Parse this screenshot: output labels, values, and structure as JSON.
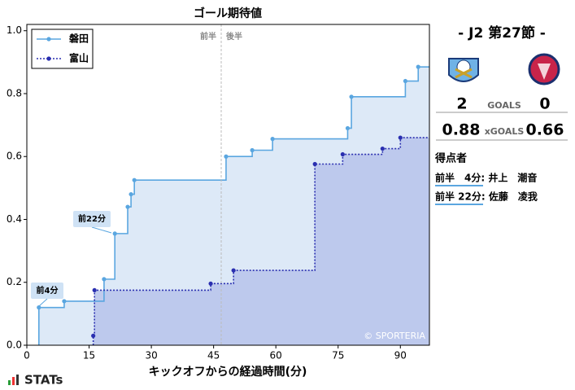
{
  "chart_data": {
    "type": "step",
    "title": "ゴール期待値",
    "xlabel": "キックオフからの経過時間(分)",
    "xlim": [
      0,
      97
    ],
    "ylim": [
      0,
      1.02
    ],
    "xticks": [
      0,
      15,
      30,
      45,
      60,
      75,
      90
    ],
    "yticks": [
      {
        "value": 0,
        "label": "0.0"
      },
      0.2,
      0.4,
      0.6,
      0.8,
      {
        "value": 1,
        "label": "1.0"
      }
    ],
    "half_labels": [
      "前半",
      "後半"
    ],
    "legend_loc": "upper left",
    "watermark": "© SPORTERIA",
    "annotations": [
      "前4分",
      "前22分"
    ],
    "series": [
      {
        "name": "磐田",
        "color": "#5aa6e0",
        "fill": "#dde9f7",
        "linestyle": "solid",
        "x": [
          2.9,
          9,
          18.6,
          21.2,
          24.3,
          25.1,
          25.9,
          48,
          54.3,
          59.2,
          77.3,
          78.2,
          91.2,
          94.3
        ],
        "values": [
          0.12,
          0.14,
          0.21,
          0.355,
          0.44,
          0.48,
          0.525,
          0.6,
          0.62,
          0.656,
          0.69,
          0.79,
          0.84,
          0.885
        ]
      },
      {
        "name": "富山",
        "color": "#2a2fb0",
        "fill": "#b9c5eb",
        "linestyle": "dotted",
        "x": [
          16,
          16.3,
          44.3,
          49.8,
          69.4,
          76.1,
          85.7,
          90
        ],
        "values": [
          0.03,
          0.175,
          0.196,
          0.238,
          0.576,
          0.607,
          0.625,
          0.66
        ]
      }
    ]
  },
  "side": {
    "round": "-  J2 第27節  -",
    "home_goals": "2",
    "goals_label": "GOALS",
    "away_goals": "0",
    "home_xg": "0.88",
    "xg_label": "xGOALS",
    "away_xg": "0.66",
    "scorers_title": "得点者",
    "scorers": [
      "前半　4分: 井上　潮音",
      "前半 22分: 佐藤　凌我"
    ]
  },
  "logo": "STATs"
}
